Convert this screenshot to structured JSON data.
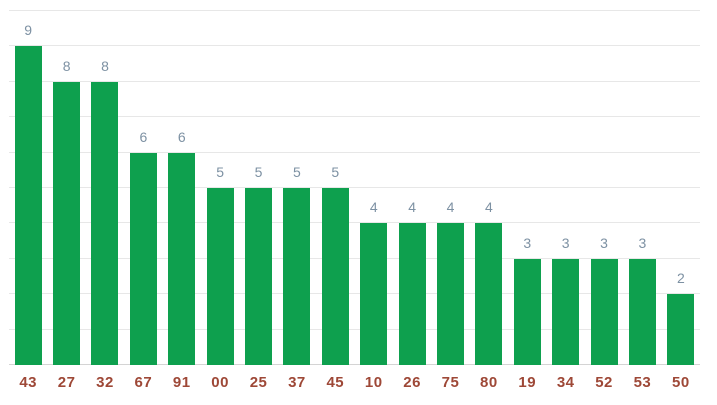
{
  "chart_data": {
    "type": "bar",
    "categories": [
      "43",
      "27",
      "32",
      "67",
      "91",
      "00",
      "25",
      "37",
      "45",
      "10",
      "26",
      "75",
      "80",
      "19",
      "34",
      "52",
      "53",
      "50"
    ],
    "values": [
      9,
      8,
      8,
      6,
      6,
      5,
      5,
      5,
      5,
      4,
      4,
      4,
      4,
      3,
      3,
      3,
      3,
      2
    ],
    "value_labels_shown": true,
    "xlabel": "",
    "ylabel": "",
    "ylim": [
      0,
      10
    ],
    "gridline_step": 1,
    "grid": "horizontal",
    "y_axis_labels_visible": false,
    "legend": "none",
    "colors": {
      "bar": "#0ea04e",
      "value_label": "#7d91a3",
      "x_axis_label": "#9e4837",
      "gridline": "#e7e7e7",
      "baseline": "#d4d4d4",
      "background": "#ffffff"
    }
  }
}
